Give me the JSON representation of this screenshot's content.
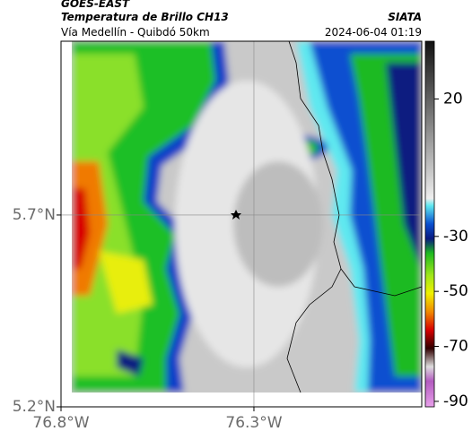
{
  "header": {
    "source": "GOES-EAST",
    "title": "Temperatura de Brillo CH13",
    "brand": "SIATA",
    "subtitle": "Vía Medellín - Quibdó 50km",
    "datetime": "2024-06-04 01:19"
  },
  "map": {
    "xlim": [
      -76.8,
      -75.865
    ],
    "ylim": [
      5.2,
      6.153
    ],
    "xticks": [
      {
        "value": -76.8,
        "label": "76.8°W"
      },
      {
        "value": -76.3,
        "label": "76.3°W"
      }
    ],
    "yticks": [
      {
        "value": 5.2,
        "label": "5.2°N"
      },
      {
        "value": 5.7,
        "label": "5.7°N"
      }
    ],
    "grid": true
  },
  "colorbar": {
    "clim": [
      41,
      -92
    ],
    "ticks": [
      20,
      -30,
      -50,
      -70,
      -90
    ]
  }
}
